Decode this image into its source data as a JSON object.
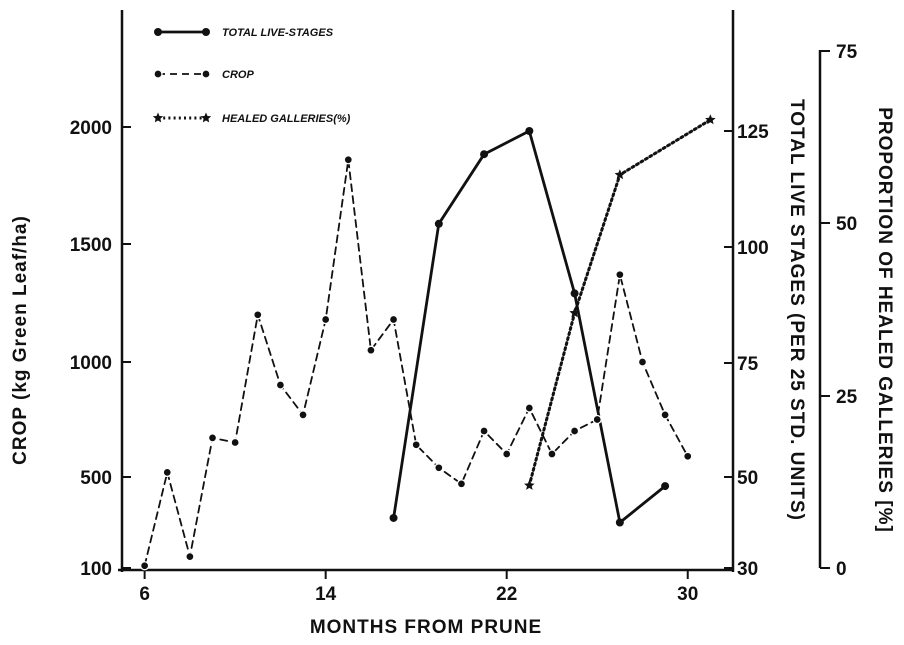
{
  "chart_data": {
    "type": "line",
    "xlabel": "MONTHS FROM PRUNE",
    "x_ticks": [
      "6",
      "14",
      "22",
      "30"
    ],
    "xlim": [
      5,
      32
    ],
    "axes": {
      "crop": {
        "label": "CROP (kg Green Leaf/ha)",
        "ticks": [
          "100",
          "500",
          "1000",
          "1500",
          "2000"
        ],
        "ylim": [
          100,
          2500
        ]
      },
      "live": {
        "label": "TOTAL LIVE STAGES (PER 25 STD. UNITS)",
        "ticks": [
          "30",
          "50",
          "75",
          "100",
          "125"
        ],
        "ylim": [
          30,
          150
        ]
      },
      "healed": {
        "label": "PROPORTION OF HEALED GALLERIES [%]",
        "ticks": [
          "0",
          "25",
          "50",
          "75"
        ],
        "ylim": [
          0,
          75
        ]
      }
    },
    "legend": [
      {
        "label": "TOTAL LIVE-STAGES",
        "style": "solid",
        "marker": "filled-circle"
      },
      {
        "label": "CROP",
        "style": "dashed",
        "marker": "open-circle"
      },
      {
        "label": "HEALED GALLERIES(%)",
        "style": "dotted",
        "marker": "star"
      }
    ],
    "series": [
      {
        "name": "TOTAL LIVE-STAGES",
        "axis": "live",
        "style": "solid",
        "x": [
          17,
          19,
          21,
          23,
          25,
          27,
          29
        ],
        "y": [
          41,
          105,
          120,
          125,
          90,
          40,
          48
        ]
      },
      {
        "name": "CROP",
        "axis": "crop",
        "style": "dashed",
        "x": [
          6,
          7,
          8,
          9,
          10,
          11,
          12,
          13,
          14,
          15,
          16,
          17,
          18,
          19,
          20,
          21,
          22,
          23,
          24,
          25,
          26,
          27,
          28,
          29,
          30
        ],
        "y": [
          110,
          520,
          150,
          670,
          650,
          1200,
          900,
          770,
          1180,
          1860,
          1050,
          1180,
          640,
          540,
          470,
          700,
          600,
          800,
          600,
          700,
          750,
          1370,
          1000,
          770,
          590
        ]
      },
      {
        "name": "HEALED GALLERIES(%)",
        "axis": "healed",
        "style": "dotted",
        "x": [
          23,
          25,
          27,
          31
        ],
        "y": [
          12,
          37,
          57,
          65
        ]
      }
    ]
  }
}
